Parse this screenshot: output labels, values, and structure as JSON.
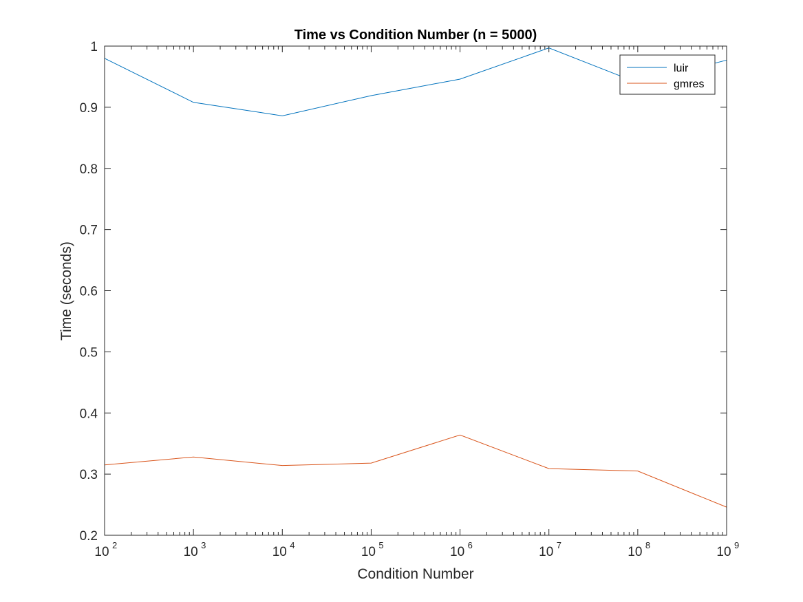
{
  "chart_data": {
    "type": "line",
    "title": "Time vs Condition Number (n = 5000)",
    "xlabel": "Condition Number",
    "ylabel": "Time (seconds)",
    "x_scale": "log",
    "xlim": [
      100,
      1000000000
    ],
    "ylim": [
      0.2,
      1.0
    ],
    "x": [
      100,
      1000,
      10000,
      100000,
      1000000,
      10000000,
      100000000,
      1000000000
    ],
    "x_tick_labels": [
      {
        "base": "10",
        "exp": "2"
      },
      {
        "base": "10",
        "exp": "3"
      },
      {
        "base": "10",
        "exp": "4"
      },
      {
        "base": "10",
        "exp": "5"
      },
      {
        "base": "10",
        "exp": "6"
      },
      {
        "base": "10",
        "exp": "7"
      },
      {
        "base": "10",
        "exp": "8"
      },
      {
        "base": "10",
        "exp": "9"
      }
    ],
    "y_ticks": [
      0.2,
      0.3,
      0.4,
      0.5,
      0.6,
      0.7,
      0.8,
      0.9,
      1.0
    ],
    "y_tick_labels": [
      "0.2",
      "0.3",
      "0.4",
      "0.5",
      "0.6",
      "0.7",
      "0.8",
      "0.9",
      "1"
    ],
    "grid": false,
    "legend_position": "top-right",
    "series": [
      {
        "name": "luir",
        "color": "#0072BD",
        "values": [
          0.98,
          0.908,
          0.886,
          0.919,
          0.946,
          0.997,
          0.94,
          0.977
        ]
      },
      {
        "name": "gmres",
        "color": "#D95319",
        "values": [
          0.315,
          0.328,
          0.314,
          0.318,
          0.364,
          0.309,
          0.305,
          0.246
        ]
      }
    ]
  }
}
